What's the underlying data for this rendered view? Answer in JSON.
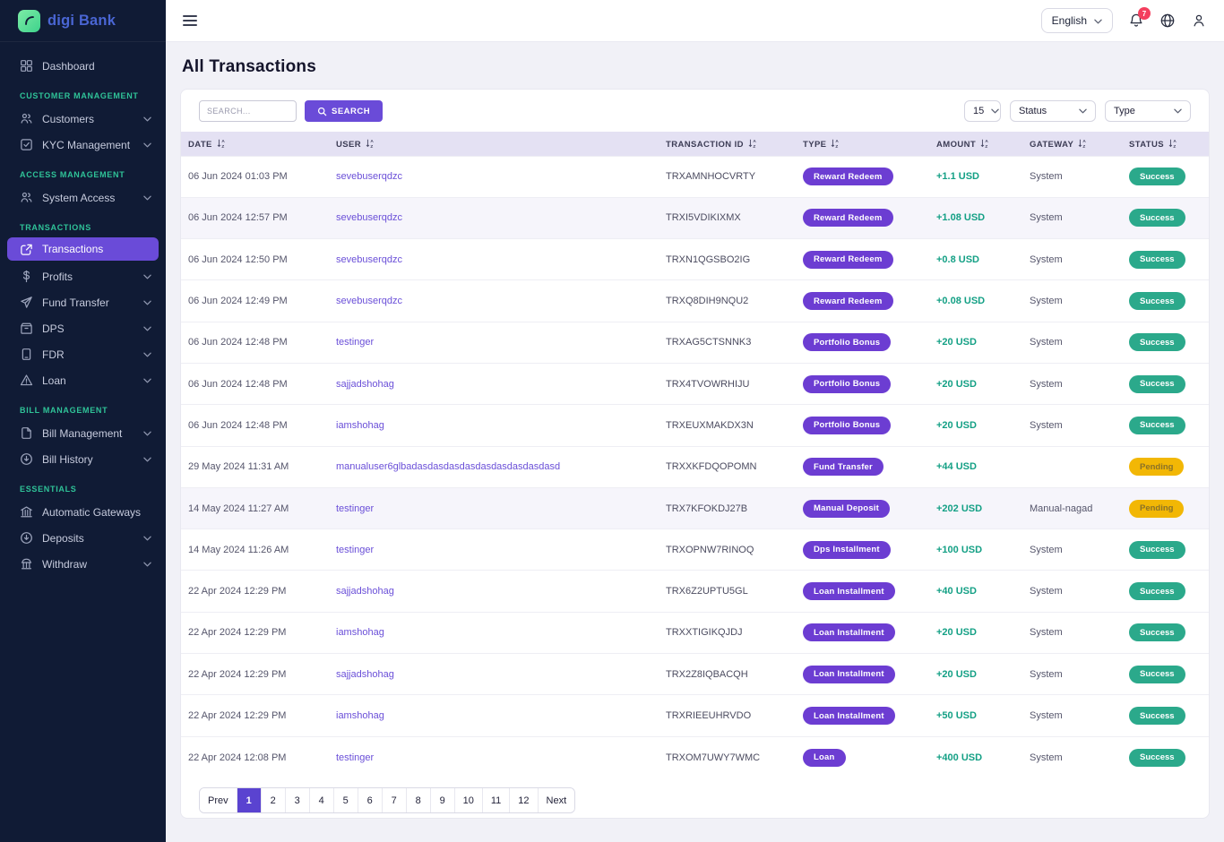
{
  "brand": {
    "digi": "digi",
    "bank": "Bank"
  },
  "header": {
    "language": "English",
    "notification_count": "7"
  },
  "sidebar": {
    "section_labels": [
      "CUSTOMER MANAGEMENT",
      "ACCESS MANAGEMENT",
      "TRANSACTIONS",
      "BILL MANAGEMENT",
      "ESSENTIALS"
    ],
    "items": [
      {
        "label": "Dashboard"
      },
      {
        "label": "Customers"
      },
      {
        "label": "KYC Management"
      },
      {
        "label": "System Access"
      },
      {
        "label": "Transactions"
      },
      {
        "label": "Profits"
      },
      {
        "label": "Fund Transfer"
      },
      {
        "label": "DPS"
      },
      {
        "label": "FDR"
      },
      {
        "label": "Loan"
      },
      {
        "label": "Bill Management"
      },
      {
        "label": "Bill History"
      },
      {
        "label": "Automatic Gateways"
      },
      {
        "label": "Deposits"
      },
      {
        "label": "Withdraw"
      }
    ],
    "active_item": "Transactions"
  },
  "page": {
    "title": "All Transactions"
  },
  "search": {
    "placeholder": "SEARCH...",
    "button": "SEARCH"
  },
  "filters": {
    "per_page": "15",
    "status": "Status",
    "type": "Type"
  },
  "table": {
    "columns": [
      "DATE",
      "USER",
      "TRANSACTION ID",
      "TYPE",
      "AMOUNT",
      "GATEWAY",
      "STATUS"
    ],
    "rows": [
      {
        "date": "06 Jun 2024 01:03 PM",
        "user": "sevebuserqdzc",
        "txid": "TRXAMNHOCVRTY",
        "type": "Reward Redeem",
        "amount": "+1.1 USD",
        "gateway": "System",
        "status": "Success"
      },
      {
        "date": "06 Jun 2024 12:57 PM",
        "user": "sevebuserqdzc",
        "txid": "TRXI5VDIKIXMX",
        "type": "Reward Redeem",
        "amount": "+1.08 USD",
        "gateway": "System",
        "status": "Success",
        "shaded": true
      },
      {
        "date": "06 Jun 2024 12:50 PM",
        "user": "sevebuserqdzc",
        "txid": "TRXN1QGSBO2IG",
        "type": "Reward Redeem",
        "amount": "+0.8 USD",
        "gateway": "System",
        "status": "Success"
      },
      {
        "date": "06 Jun 2024 12:49 PM",
        "user": "sevebuserqdzc",
        "txid": "TRXQ8DIH9NQU2",
        "type": "Reward Redeem",
        "amount": "+0.08 USD",
        "gateway": "System",
        "status": "Success"
      },
      {
        "date": "06 Jun 2024 12:48 PM",
        "user": "testinger",
        "txid": "TRXAG5CTSNNK3",
        "type": "Portfolio Bonus",
        "amount": "+20 USD",
        "gateway": "System",
        "status": "Success"
      },
      {
        "date": "06 Jun 2024 12:48 PM",
        "user": "sajjadshohag",
        "txid": "TRX4TVOWRHIJU",
        "type": "Portfolio Bonus",
        "amount": "+20 USD",
        "gateway": "System",
        "status": "Success"
      },
      {
        "date": "06 Jun 2024 12:48 PM",
        "user": "iamshohag",
        "txid": "TRXEUXMAKDX3N",
        "type": "Portfolio Bonus",
        "amount": "+20 USD",
        "gateway": "System",
        "status": "Success"
      },
      {
        "date": "29 May 2024 11:31 AM",
        "user": "manualuser6glbadasdasdasdasdasdasdasdasdasd",
        "txid": "TRXXKFDQOPOMN",
        "type": "Fund Transfer",
        "amount": "+44 USD",
        "gateway": "",
        "status": "Pending"
      },
      {
        "date": "14 May 2024 11:27 AM",
        "user": "testinger",
        "txid": "TRX7KFOKDJ27B",
        "type": "Manual Deposit",
        "amount": "+202 USD",
        "gateway": "Manual-nagad",
        "status": "Pending",
        "shaded": true
      },
      {
        "date": "14 May 2024 11:26 AM",
        "user": "testinger",
        "txid": "TRXOPNW7RINOQ",
        "type": "Dps Installment",
        "amount": "+100 USD",
        "gateway": "System",
        "status": "Success"
      },
      {
        "date": "22 Apr 2024 12:29 PM",
        "user": "sajjadshohag",
        "txid": "TRX6Z2UPTU5GL",
        "type": "Loan Installment",
        "amount": "+40 USD",
        "gateway": "System",
        "status": "Success"
      },
      {
        "date": "22 Apr 2024 12:29 PM",
        "user": "iamshohag",
        "txid": "TRXXTIGIKQJDJ",
        "type": "Loan Installment",
        "amount": "+20 USD",
        "gateway": "System",
        "status": "Success"
      },
      {
        "date": "22 Apr 2024 12:29 PM",
        "user": "sajjadshohag",
        "txid": "TRX2Z8IQBACQH",
        "type": "Loan Installment",
        "amount": "+20 USD",
        "gateway": "System",
        "status": "Success"
      },
      {
        "date": "22 Apr 2024 12:29 PM",
        "user": "iamshohag",
        "txid": "TRXRIEEUHRVDO",
        "type": "Loan Installment",
        "amount": "+50 USD",
        "gateway": "System",
        "status": "Success"
      },
      {
        "date": "22 Apr 2024 12:08 PM",
        "user": "testinger",
        "txid": "TRXOM7UWY7WMC",
        "type": "Loan",
        "amount": "+400 USD",
        "gateway": "System",
        "status": "Success"
      }
    ]
  },
  "pagination": {
    "prev": "Prev",
    "pages": [
      "1",
      "2",
      "3",
      "4",
      "5",
      "6",
      "7",
      "8",
      "9",
      "10",
      "11",
      "12"
    ],
    "active": "1",
    "next": "Next"
  },
  "colors": {
    "sidebar_bg": "#101b35",
    "accent_purple": "#6a4bd8",
    "type_badge_purple": "#6c3dd2",
    "success_teal": "#2ba98b",
    "pending_yellow": "#f2b705",
    "amount_teal": "#14a085",
    "section_label_teal": "#2fc398",
    "notification_red": "#f43f5e",
    "brand_blue": "#4a66d4",
    "logo_green": "#3ed28c",
    "table_head_bg": "#e4e1f3"
  }
}
